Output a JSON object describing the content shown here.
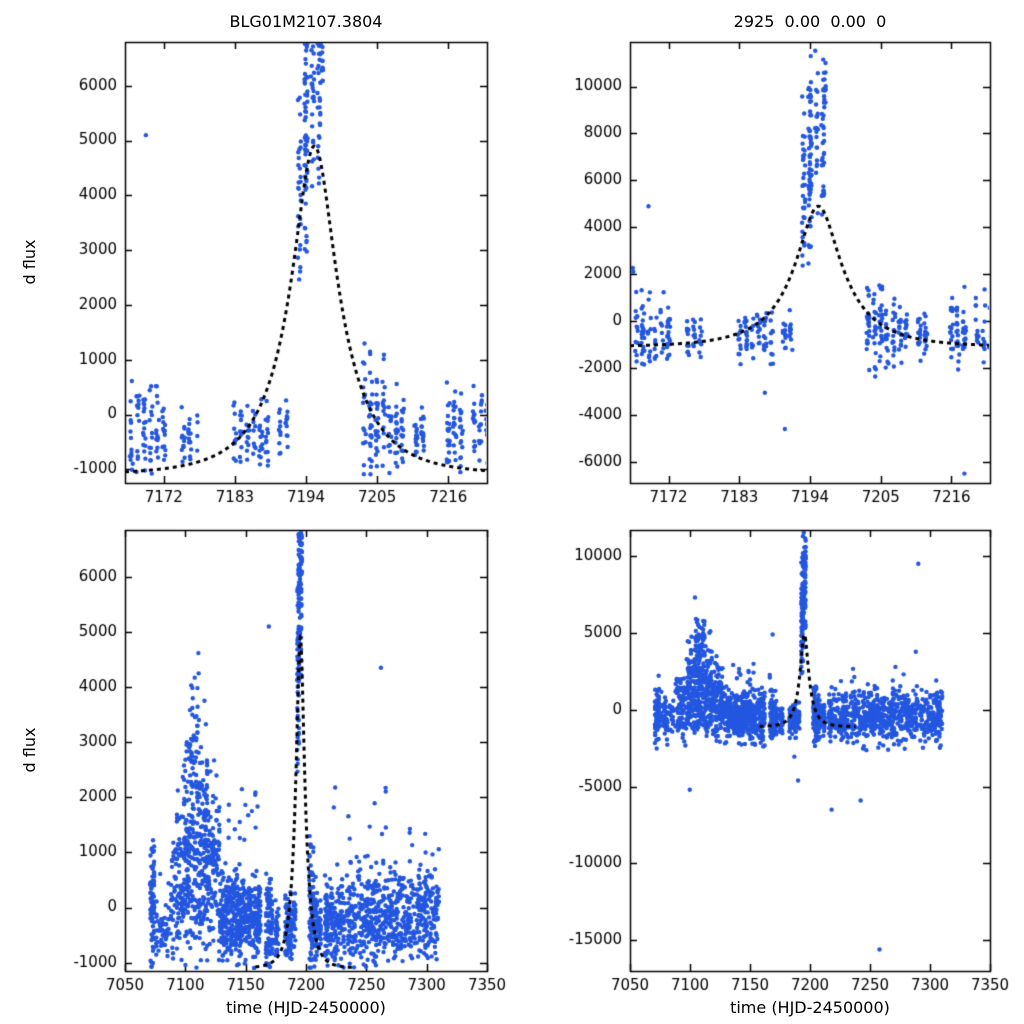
{
  "app": {
    "background": "#ffffff"
  },
  "chart_data": {
    "type": "scatter",
    "seed": 12345,
    "point_radius": 2.2,
    "colors": {
      "points": "#2457e0",
      "model": "#000000",
      "axis": "#000000",
      "text": "#000000"
    },
    "model": {
      "t0": 7195.3,
      "u0": 0.35,
      "tE": 10,
      "baseline": -1100,
      "scale": 3020,
      "dash": [
        4,
        4
      ],
      "linewidth": 3
    },
    "panels": [
      {
        "id": "top-left",
        "title": "BLG01M2107.3804",
        "xlabel": "",
        "ylabel": "d flux",
        "dataset": "A",
        "rect": [
          125,
          42,
          362,
          441
        ],
        "xlim": [
          7166,
          7222
        ],
        "ylim": [
          -1250,
          6800
        ],
        "xticks": [
          7172,
          7183,
          7194,
          7205,
          7216
        ],
        "yticks": [
          -1000,
          0,
          1000,
          2000,
          3000,
          4000,
          5000,
          6000
        ],
        "model_range": [
          7166,
          7222
        ]
      },
      {
        "id": "top-right",
        "title": "2925  0.00  0.00  0",
        "xlabel": "",
        "ylabel": "",
        "dataset": "B",
        "rect": [
          630,
          42,
          360,
          441
        ],
        "xlim": [
          7166,
          7222
        ],
        "ylim": [
          -6900,
          11900
        ],
        "xticks": [
          7172,
          7183,
          7194,
          7205,
          7216
        ],
        "yticks": [
          -6000,
          -4000,
          -2000,
          0,
          2000,
          4000,
          6000,
          8000,
          10000
        ],
        "model_range": [
          7166,
          7222
        ]
      },
      {
        "id": "bottom-left",
        "title": "",
        "xlabel": "time (HJD-2450000)",
        "ylabel": "d flux",
        "dataset": "A",
        "rect": [
          125,
          530,
          362,
          441
        ],
        "xlim": [
          7050,
          7350
        ],
        "ylim": [
          -1150,
          6850
        ],
        "xticks": [
          7050,
          7100,
          7150,
          7200,
          7250,
          7300,
          7350
        ],
        "yticks": [
          -1000,
          0,
          1000,
          2000,
          3000,
          4000,
          5000,
          6000
        ],
        "model_range": [
          7158,
          7238
        ]
      },
      {
        "id": "bottom-right",
        "title": "",
        "xlabel": "time (HJD-2450000)",
        "ylabel": "",
        "dataset": "B",
        "rect": [
          630,
          530,
          360,
          441
        ],
        "xlim": [
          7050,
          7350
        ],
        "ylim": [
          -17000,
          11700
        ],
        "xticks": [
          7050,
          7100,
          7150,
          7200,
          7250,
          7300,
          7350
        ],
        "yticks": [
          -15000,
          -10000,
          -5000,
          0,
          5000,
          10000
        ],
        "model_range": [
          7158,
          7238
        ]
      }
    ],
    "datasets": {
      "A": {
        "clusters": [
          {
            "x0": 7071,
            "x1": 7074,
            "n": 70,
            "mean": -100,
            "sd": 600,
            "min": -1100,
            "max": 1600
          },
          {
            "x0": 7076,
            "x1": 7086,
            "n": 55,
            "mean": -400,
            "sd": 350,
            "min": -1050,
            "max": 800
          },
          {
            "x0": 7088,
            "x1": 7097,
            "n": 85,
            "mean": 300,
            "sd": 700,
            "min": -1050,
            "max": 2400
          },
          {
            "x0": 7098,
            "x1": 7103,
            "n": 80,
            "mean": 1200,
            "sd": 900,
            "min": -900,
            "max": 3400
          },
          {
            "x0": 7104,
            "x1": 7112,
            "n": 120,
            "mean": 2000,
            "sd": 1200,
            "min": -800,
            "max": 4800
          },
          {
            "x0": 7113,
            "x1": 7118,
            "n": 80,
            "mean": 1200,
            "sd": 1000,
            "min": -900,
            "max": 3800
          },
          {
            "x0": 7098,
            "x1": 7118,
            "n": 90,
            "mean": 0,
            "sd": 600,
            "min": -1100,
            "max": 1400
          },
          {
            "x0": 7119,
            "x1": 7128,
            "n": 110,
            "mean": 600,
            "sd": 800,
            "min": -1050,
            "max": 3300
          },
          {
            "x0": 7129,
            "x1": 7162,
            "n": 420,
            "mean": -150,
            "sd": 420,
            "min": -1100,
            "max": 1500
          },
          {
            "x0": 7135,
            "x1": 7160,
            "n": 15,
            "mean": 1700,
            "sd": 350,
            "min": 1200,
            "max": 2400
          },
          {
            "x0": 7167,
            "x1": 7172,
            "n": 85,
            "mean": -300,
            "sd": 500,
            "min": -1100,
            "max": 1700
          },
          {
            "x": 7169,
            "n": 1,
            "mean": 5100,
            "sd": 0
          },
          {
            "x0": 7175,
            "x1": 7177,
            "n": 30,
            "mean": -450,
            "sd": 300,
            "min": -1000,
            "max": 350
          },
          {
            "x0": 7183,
            "x1": 7188,
            "n": 70,
            "mean": -400,
            "sd": 330,
            "min": -1100,
            "max": 500
          },
          {
            "x0": 7190,
            "x1": 7191,
            "n": 22,
            "mean": -250,
            "sd": 280,
            "min": -850,
            "max": 400
          },
          {
            "x0": 7193,
            "x1": 7194,
            "n": 55,
            "mean": 4200,
            "sd": 1300,
            "min": 2300,
            "max": 6900
          },
          {
            "x0": 7194,
            "x1": 7196,
            "n": 75,
            "mean": 5700,
            "sd": 900,
            "min": 3800,
            "max": 6900
          },
          {
            "x": 7196.4,
            "n": 16,
            "mean": 6350,
            "sd": 350,
            "min": 5700,
            "max": 6900
          },
          {
            "x0": 7203,
            "x1": 7205,
            "n": 60,
            "mean": -100,
            "sd": 650,
            "min": -1100,
            "max": 1750
          },
          {
            "x0": 7206,
            "x1": 7209,
            "n": 60,
            "mean": -300,
            "sd": 480,
            "min": -1100,
            "max": 1100
          },
          {
            "x0": 7211,
            "x1": 7212,
            "n": 30,
            "mean": -350,
            "sd": 300,
            "min": -900,
            "max": 350
          },
          {
            "x0": 7216,
            "x1": 7218,
            "n": 55,
            "mean": -300,
            "sd": 430,
            "min": -1100,
            "max": 900
          },
          {
            "x0": 7220,
            "x1": 7232,
            "n": 110,
            "mean": -250,
            "sd": 420,
            "min": -1100,
            "max": 950
          },
          {
            "x0": 7234,
            "x1": 7262,
            "n": 250,
            "mean": -150,
            "sd": 450,
            "min": -1100,
            "max": 1350
          },
          {
            "x": 7262,
            "n": 1,
            "mean": 4350,
            "sd": 0
          },
          {
            "x": 7266,
            "n": 2,
            "mean": 2000,
            "sd": 120
          },
          {
            "x0": 7264,
            "x1": 7290,
            "n": 210,
            "mean": -200,
            "sd": 430,
            "min": -1100,
            "max": 1150
          },
          {
            "x0": 7292,
            "x1": 7310,
            "n": 150,
            "mean": -150,
            "sd": 450,
            "min": -1100,
            "max": 1250
          },
          {
            "x0": 7222,
            "x1": 7305,
            "n": 10,
            "mean": 1600,
            "sd": 300,
            "min": 1150,
            "max": 2300
          }
        ]
      },
      "B": {
        "clusters": [
          {
            "x0": 7071,
            "x1": 7074,
            "n": 70,
            "mean": -300,
            "sd": 900,
            "min": -2600,
            "max": 2400
          },
          {
            "x0": 7076,
            "x1": 7086,
            "n": 55,
            "mean": -500,
            "sd": 700,
            "min": -2400,
            "max": 1500
          },
          {
            "x0": 7088,
            "x1": 7097,
            "n": 85,
            "mean": 200,
            "sd": 1100,
            "min": -2600,
            "max": 3500
          },
          {
            "x0": 7098,
            "x1": 7103,
            "n": 80,
            "mean": 1600,
            "sd": 1400,
            "min": -1800,
            "max": 5200
          },
          {
            "x0": 7104,
            "x1": 7112,
            "n": 120,
            "mean": 2600,
            "sd": 1800,
            "min": -1500,
            "max": 7700
          },
          {
            "x0": 7113,
            "x1": 7118,
            "n": 80,
            "mean": 1600,
            "sd": 1500,
            "min": -1800,
            "max": 5800
          },
          {
            "x0": 7098,
            "x1": 7118,
            "n": 90,
            "mean": 0,
            "sd": 900,
            "min": -2200,
            "max": 2200
          },
          {
            "x": 7100,
            "n": 1,
            "mean": -5200,
            "sd": 0
          },
          {
            "x0": 7119,
            "x1": 7128,
            "n": 110,
            "mean": 800,
            "sd": 1300,
            "min": -2300,
            "max": 4600
          },
          {
            "x0": 7129,
            "x1": 7162,
            "n": 420,
            "mean": -400,
            "sd": 750,
            "min": -2700,
            "max": 1800
          },
          {
            "x0": 7135,
            "x1": 7160,
            "n": 12,
            "mean": 2300,
            "sd": 500,
            "min": 1500,
            "max": 3400
          },
          {
            "x0": 7167,
            "x1": 7172,
            "n": 85,
            "mean": -500,
            "sd": 800,
            "min": -2500,
            "max": 1600
          },
          {
            "x": 7166.6,
            "n": 2,
            "mean": 2250,
            "sd": 120
          },
          {
            "x": 7169,
            "n": 1,
            "mean": 4900,
            "sd": 0
          },
          {
            "x0": 7175,
            "x1": 7177,
            "n": 30,
            "mean": -700,
            "sd": 500,
            "min": -2000,
            "max": 400
          },
          {
            "x0": 7183,
            "x1": 7188,
            "n": 70,
            "mean": -600,
            "sd": 550,
            "min": -2200,
            "max": 600
          },
          {
            "x": 7187,
            "n": 1,
            "mean": -3050,
            "sd": 0
          },
          {
            "x": 7190,
            "n": 1,
            "mean": -4600,
            "sd": 0
          },
          {
            "x0": 7190,
            "x1": 7191,
            "n": 22,
            "mean": -450,
            "sd": 450,
            "min": -1600,
            "max": 500
          },
          {
            "x0": 7193,
            "x1": 7194,
            "n": 60,
            "mean": 5800,
            "sd": 2300,
            "min": 2300,
            "max": 11600
          },
          {
            "x0": 7194,
            "x1": 7196,
            "n": 80,
            "mean": 7200,
            "sd": 1700,
            "min": 4200,
            "max": 11600
          },
          {
            "x": 7196.3,
            "n": 14,
            "mean": 10000,
            "sd": 800,
            "min": 8600,
            "max": 11500
          },
          {
            "x0": 7203,
            "x1": 7205,
            "n": 60,
            "mean": -300,
            "sd": 950,
            "min": -2600,
            "max": 2000
          },
          {
            "x0": 7206,
            "x1": 7209,
            "n": 60,
            "mean": -500,
            "sd": 750,
            "min": -2500,
            "max": 1400
          },
          {
            "x0": 7211,
            "x1": 7212,
            "n": 30,
            "mean": -600,
            "sd": 450,
            "min": -1700,
            "max": 350
          },
          {
            "x0": 7216,
            "x1": 7218,
            "n": 55,
            "mean": -500,
            "sd": 750,
            "min": -2400,
            "max": 1500
          },
          {
            "x": 7218,
            "n": 1,
            "mean": -6500,
            "sd": 0
          },
          {
            "x0": 7220,
            "x1": 7232,
            "n": 110,
            "mean": -450,
            "sd": 750,
            "min": -2500,
            "max": 1500
          },
          {
            "x0": 7234,
            "x1": 7262,
            "n": 250,
            "mean": -400,
            "sd": 800,
            "min": -2700,
            "max": 1900
          },
          {
            "x": 7242,
            "n": 1,
            "mean": -5900,
            "sd": 0
          },
          {
            "x": 7258,
            "n": 1,
            "mean": -15600,
            "sd": 0
          },
          {
            "x0": 7264,
            "x1": 7290,
            "n": 210,
            "mean": -400,
            "sd": 800,
            "min": -2700,
            "max": 1700
          },
          {
            "x": 7290,
            "n": 1,
            "mean": 9500,
            "sd": 0
          },
          {
            "x0": 7292,
            "x1": 7310,
            "n": 150,
            "mean": -400,
            "sd": 850,
            "min": -2700,
            "max": 1700
          },
          {
            "x0": 7222,
            "x1": 7305,
            "n": 8,
            "mean": 2600,
            "sd": 600,
            "min": 1800,
            "max": 4200
          }
        ]
      }
    }
  }
}
